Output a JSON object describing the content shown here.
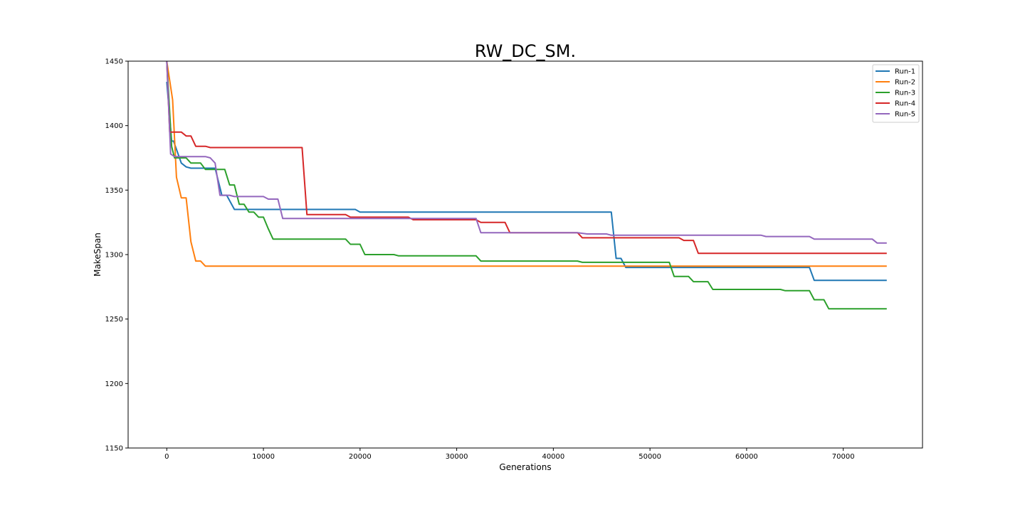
{
  "chart_data": {
    "type": "line",
    "title": "RW_DC_SM.",
    "xlabel": "Generations",
    "ylabel": "MakeSpan",
    "xlim": [
      -4000,
      78200
    ],
    "ylim": [
      1150,
      1450
    ],
    "xticks": [
      0,
      10000,
      20000,
      30000,
      40000,
      50000,
      60000,
      70000
    ],
    "xtick_labels": [
      "0",
      "10000",
      "20000",
      "30000",
      "40000",
      "50000",
      "60000",
      "70000"
    ],
    "yticks": [
      1150,
      1200,
      1250,
      1300,
      1350,
      1400,
      1450
    ],
    "ytick_labels": [
      "1150",
      "1200",
      "1250",
      "1300",
      "1350",
      "1400",
      "1450"
    ],
    "grid": false,
    "legend": "top-right",
    "series": [
      {
        "name": "Run-1",
        "color": "#1f77b4",
        "x": [
          0,
          500,
          700,
          1500,
          2000,
          2500,
          5000,
          5700,
          6200,
          7000,
          19500,
          20000,
          46000,
          46500,
          47000,
          47500,
          66500,
          67000,
          74500
        ],
        "y": [
          1434,
          1388,
          1388,
          1371,
          1368,
          1367,
          1367,
          1346,
          1346,
          1335,
          1335,
          1333,
          1333,
          1297,
          1297,
          1290,
          1290,
          1280,
          1280
        ]
      },
      {
        "name": "Run-2",
        "color": "#ff7f0e",
        "x": [
          0,
          600,
          1000,
          1500,
          2000,
          2500,
          3000,
          3500,
          4000,
          74500
        ],
        "y": [
          1450,
          1420,
          1360,
          1344,
          1344,
          1310,
          1295,
          1295,
          1291,
          1291
        ]
      },
      {
        "name": "Run-3",
        "color": "#2ca02c",
        "x": [
          0,
          500,
          800,
          2000,
          2500,
          3500,
          4000,
          6000,
          6500,
          7000,
          7500,
          8000,
          8500,
          9000,
          9500,
          10000,
          10500,
          11000,
          18500,
          19000,
          20000,
          20500,
          23500,
          24000,
          32000,
          32500,
          42500,
          43000,
          52000,
          52500,
          54000,
          54500,
          56000,
          56500,
          63500,
          64000,
          66500,
          67000,
          68000,
          68500,
          74500
        ],
        "y": [
          1450,
          1384,
          1375,
          1375,
          1371,
          1371,
          1366,
          1366,
          1354,
          1354,
          1339,
          1339,
          1333,
          1333,
          1329,
          1329,
          1320,
          1312,
          1312,
          1308,
          1308,
          1300,
          1300,
          1299,
          1299,
          1295,
          1295,
          1294,
          1294,
          1283,
          1283,
          1279,
          1279,
          1273,
          1273,
          1272,
          1272,
          1265,
          1265,
          1258,
          1258
        ]
      },
      {
        "name": "Run-4",
        "color": "#d62728",
        "x": [
          0,
          300,
          1500,
          2000,
          2500,
          3000,
          4000,
          4500,
          14000,
          14500,
          18500,
          19000,
          25000,
          25500,
          32000,
          32500,
          35000,
          35500,
          42500,
          43000,
          53000,
          53500,
          54500,
          55000,
          74500
        ],
        "y": [
          1450,
          1395,
          1395,
          1392,
          1392,
          1384,
          1384,
          1383,
          1383,
          1331,
          1331,
          1329,
          1329,
          1327,
          1327,
          1325,
          1325,
          1317,
          1317,
          1313,
          1313,
          1311,
          1311,
          1301,
          1301
        ]
      },
      {
        "name": "Run-5",
        "color": "#9467bd",
        "x": [
          0,
          400,
          800,
          1500,
          4000,
          4500,
          5000,
          5500,
          6500,
          7000,
          10000,
          10500,
          11500,
          12000,
          32000,
          32500,
          42500,
          43500,
          45500,
          46000,
          61500,
          62000,
          66500,
          67000,
          73000,
          73500,
          74500
        ],
        "y": [
          1450,
          1378,
          1376,
          1376,
          1376,
          1375,
          1371,
          1346,
          1346,
          1345,
          1345,
          1343,
          1343,
          1328,
          1328,
          1317,
          1317,
          1316,
          1316,
          1315,
          1315,
          1314,
          1314,
          1312,
          1312,
          1309,
          1309
        ]
      }
    ]
  }
}
